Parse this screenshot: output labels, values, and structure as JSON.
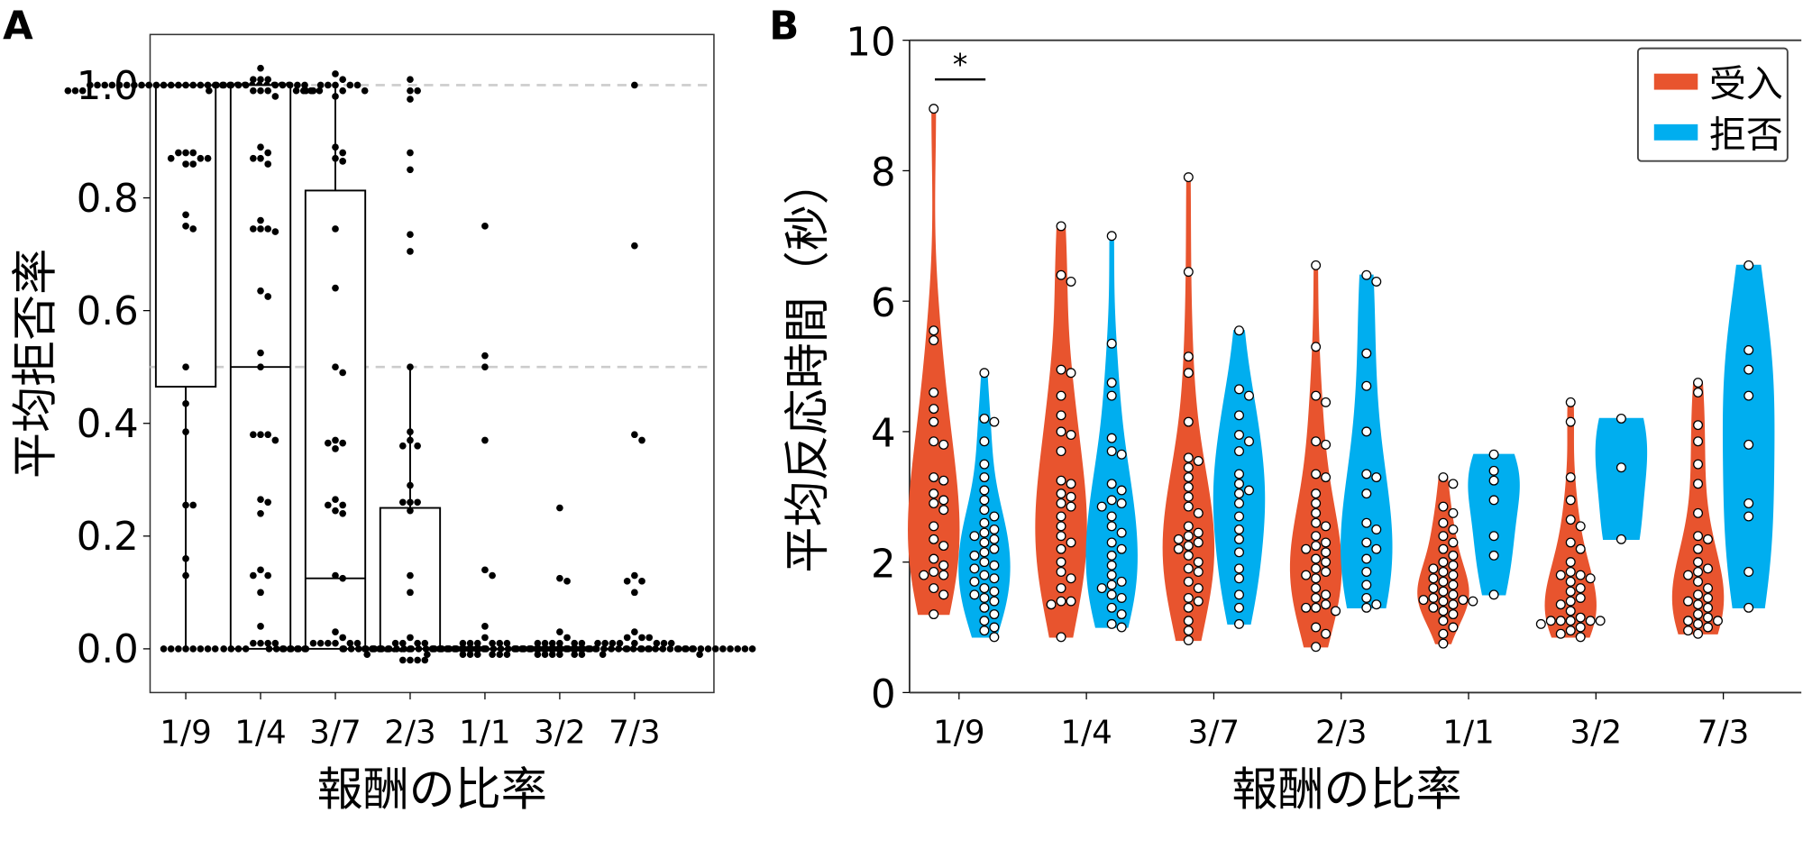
{
  "colors": {
    "accept": "#E8542E",
    "reject": "#00AEEF",
    "point": "#000000",
    "gridline": "#cccccc"
  },
  "chart_data": [
    {
      "panel_label": "A",
      "type": "box+swarm",
      "xlabel": "報酬の比率",
      "ylabel": "平均拒否率",
      "ylim": [
        -0.078,
        1.09
      ],
      "yticks": [
        "0.0",
        "0.2",
        "0.4",
        "0.6",
        "0.8",
        "1.0"
      ],
      "reference_lines": [
        0.5,
        1.0
      ],
      "categories": [
        "1/9",
        "1/4",
        "3/7",
        "2/3",
        "1/1",
        "3/2",
        "7/3"
      ],
      "boxes": [
        {
          "q1": 0.465,
          "median": 1.0,
          "q3": 1.0,
          "whisker_low": 0.0,
          "whisker_high": 1.0
        },
        {
          "q1": 0.0,
          "median": 0.5,
          "q3": 1.0,
          "whisker_low": 0.0,
          "whisker_high": 1.0
        },
        {
          "q1": 0.0,
          "median": 0.125,
          "q3": 0.813,
          "whisker_low": 0.0,
          "whisker_high": 1.0
        },
        {
          "q1": 0.0,
          "median": 0.0,
          "q3": 0.25,
          "whisker_low": 0.0,
          "whisker_high": 0.5
        },
        {
          "q1": 0.0,
          "median": 0.0,
          "q3": 0.0,
          "whisker_low": 0.0,
          "whisker_high": 0.0
        },
        {
          "q1": 0.0,
          "median": 0.0,
          "q3": 0.0,
          "whisker_low": 0.0,
          "whisker_high": 0.0
        },
        {
          "q1": 0.0,
          "median": 0.0,
          "q3": 0.0,
          "whisker_low": 0.0,
          "whisker_high": 0.0
        }
      ],
      "points": [
        [
          1,
          1,
          1,
          1,
          1,
          1,
          1,
          1,
          1,
          1,
          1,
          1,
          1,
          1,
          1,
          1,
          1,
          1,
          1,
          1,
          1,
          1,
          1,
          1,
          1,
          1,
          1,
          1,
          0.99,
          0.99,
          0.99,
          0.99,
          0.99,
          0.99,
          0.88,
          0.88,
          0.88,
          0.87,
          0.87,
          0.87,
          0.86,
          0.86,
          0.77,
          0.75,
          0.745,
          0.5,
          0.435,
          0.385,
          0.255,
          0.255,
          0.16,
          0.13,
          0,
          0,
          0,
          0,
          0,
          0,
          0,
          0
        ],
        [
          1.03,
          1.01,
          1.01,
          1.01,
          1,
          1,
          1,
          1,
          1,
          1,
          1,
          1,
          1,
          1,
          0.99,
          0.99,
          0.99,
          0.99,
          0.99,
          0.99,
          0.98,
          0.89,
          0.88,
          0.87,
          0.87,
          0.86,
          0.76,
          0.745,
          0.745,
          0.745,
          0.74,
          0.635,
          0.625,
          0.525,
          0.5,
          0.38,
          0.38,
          0.38,
          0.37,
          0.265,
          0.26,
          0.24,
          0.14,
          0.13,
          0.13,
          0.1,
          0.04,
          0.01,
          0.01,
          0.01,
          0.01,
          0,
          0,
          0,
          0,
          0,
          0,
          0,
          0
        ],
        [
          1.02,
          1.01,
          1,
          1,
          1,
          1,
          1,
          0.99,
          0.99,
          0.99,
          0.99,
          0.98,
          0.89,
          0.88,
          0.87,
          0.865,
          0.745,
          0.64,
          0.5,
          0.49,
          0.37,
          0.365,
          0.365,
          0.355,
          0.265,
          0.255,
          0.255,
          0.245,
          0.24,
          0.13,
          0.125,
          0.03,
          0.02,
          0.01,
          0.01,
          0.01,
          0.01,
          0.01,
          0.01,
          0,
          0,
          0,
          0,
          0,
          0,
          0,
          0,
          0,
          0,
          0,
          0,
          0,
          0
        ],
        [
          1.01,
          0.99,
          0.99,
          0.975,
          0.88,
          0.85,
          0.735,
          0.705,
          0.5,
          0.385,
          0.37,
          0.36,
          0.36,
          0.29,
          0.26,
          0.26,
          0.26,
          0.245,
          0.13,
          0.1,
          0.02,
          0.01,
          0.01,
          0.01,
          0.01,
          0,
          0,
          0,
          0,
          0,
          0,
          0,
          0,
          0,
          0,
          0,
          0,
          0,
          0,
          0,
          0,
          -0.02,
          -0.02,
          -0.02,
          -0.02
        ],
        [
          0.75,
          0.52,
          0.5,
          0.37,
          0.14,
          0.13,
          0.04,
          0.02,
          0.01,
          0.01,
          0.01,
          0.01,
          0.01,
          0.01,
          0,
          0,
          0,
          0,
          0,
          0,
          0,
          0,
          0,
          0,
          0,
          0,
          0,
          0,
          0,
          0,
          0,
          0,
          0,
          0,
          0,
          0,
          0,
          0,
          0,
          -0.01,
          -0.01,
          -0.01,
          -0.01,
          -0.01,
          -0.01,
          -0.01,
          -0.01
        ],
        [
          0.25,
          0.125,
          0.12,
          0.03,
          0.02,
          0.01,
          0.01,
          0.01,
          0.01,
          0.01,
          0.01,
          0,
          0,
          0,
          0,
          0,
          0,
          0,
          0,
          0,
          0,
          0,
          0,
          0,
          0,
          0,
          0,
          0,
          0,
          0,
          0,
          0,
          0,
          0,
          0,
          0,
          0,
          0,
          0,
          0,
          0,
          -0.01,
          -0.01,
          -0.01,
          -0.01,
          -0.01,
          -0.01,
          -0.01,
          -0.01
        ],
        [
          1.0,
          0.715,
          0.38,
          0.37,
          0.13,
          0.12,
          0.12,
          0.1,
          0.03,
          0.02,
          0.02,
          0.02,
          0.01,
          0.01,
          0.01,
          0.01,
          0.01,
          0.01,
          0.01,
          0.01,
          0,
          0,
          0,
          0,
          0,
          0,
          0,
          0,
          0,
          0,
          0,
          0,
          0,
          0,
          0,
          0,
          0,
          0,
          0,
          0,
          0,
          0,
          0,
          0,
          0
        ]
      ]
    },
    {
      "panel_label": "B",
      "type": "violin+swarm",
      "xlabel": "報酬の比率",
      "ylabel": "平均反応時間（秒）",
      "ylim": [
        0,
        10
      ],
      "yticks": [
        "0",
        "2",
        "4",
        "6",
        "8",
        "10"
      ],
      "categories": [
        "1/9",
        "1/4",
        "3/7",
        "2/3",
        "1/1",
        "3/2",
        "7/3"
      ],
      "legend": {
        "position": "top-right",
        "entries": [
          "受入",
          "拒否"
        ]
      },
      "annotation": {
        "text": "*",
        "category": "1/9",
        "y": 9.4
      },
      "series": [
        {
          "name": "受入",
          "points": [
            [
              8.95,
              5.55,
              5.4,
              4.6,
              4.35,
              4.15,
              3.85,
              3.8,
              3.3,
              3.25,
              3.05,
              2.95,
              2.9,
              2.8,
              2.55,
              2.35,
              2.25,
              2.05,
              1.95,
              1.85,
              1.8,
              1.8,
              1.6,
              1.5,
              1.2
            ],
            [
              7.15,
              6.4,
              6.3,
              4.95,
              4.9,
              4.55,
              4.25,
              4.0,
              3.95,
              3.7,
              3.25,
              3.2,
              3.05,
              3.0,
              2.9,
              2.85,
              2.7,
              2.55,
              2.4,
              2.3,
              2.2,
              2.0,
              1.85,
              1.75,
              1.6,
              1.4,
              1.4,
              1.35,
              0.85
            ],
            [
              7.9,
              6.45,
              5.15,
              4.9,
              4.15,
              3.6,
              3.55,
              3.45,
              3.3,
              3.15,
              3.0,
              2.85,
              2.75,
              2.55,
              2.45,
              2.4,
              2.35,
              2.3,
              2.25,
              2.2,
              2.1,
              2.0,
              1.9,
              1.85,
              1.7,
              1.6,
              1.45,
              1.4,
              1.3,
              1.1,
              0.95,
              0.8
            ],
            [
              6.55,
              5.3,
              4.55,
              4.45,
              3.85,
              3.8,
              3.35,
              3.3,
              3.05,
              2.9,
              2.75,
              2.6,
              2.55,
              2.4,
              2.3,
              2.25,
              2.2,
              2.15,
              2.05,
              2.0,
              1.9,
              1.85,
              1.8,
              1.75,
              1.6,
              1.5,
              1.45,
              1.35,
              1.3,
              1.3,
              1.25,
              1.0,
              0.9,
              0.7
            ],
            [
              3.3,
              3.2,
              2.85,
              2.75,
              2.6,
              2.5,
              2.4,
              2.3,
              2.2,
              2.1,
              2.0,
              1.95,
              1.9,
              1.85,
              1.8,
              1.75,
              1.7,
              1.65,
              1.6,
              1.55,
              1.5,
              1.45,
              1.42,
              1.42,
              1.4,
              1.4,
              1.35,
              1.3,
              1.25,
              1.2,
              1.1,
              1.0,
              0.9,
              0.75
            ],
            [
              4.45,
              4.15,
              3.3,
              2.95,
              2.65,
              2.55,
              2.3,
              2.2,
              2.0,
              1.85,
              1.8,
              1.8,
              1.75,
              1.7,
              1.6,
              1.55,
              1.45,
              1.4,
              1.35,
              1.25,
              1.15,
              1.1,
              1.1,
              1.1,
              1.1,
              1.1,
              1.05,
              1.0,
              0.95,
              0.9,
              0.85
            ],
            [
              4.75,
              4.6,
              4.1,
              3.85,
              3.5,
              3.2,
              2.75,
              2.4,
              2.35,
              2.2,
              2.0,
              1.9,
              1.85,
              1.8,
              1.7,
              1.6,
              1.5,
              1.45,
              1.4,
              1.35,
              1.3,
              1.2,
              1.15,
              1.1,
              1.1,
              1.05,
              1.0,
              0.95,
              0.9
            ]
          ]
        },
        {
          "name": "拒否",
          "points": [
            [
              4.9,
              4.2,
              4.15,
              3.85,
              3.5,
              3.3,
              3.1,
              2.95,
              2.8,
              2.7,
              2.6,
              2.5,
              2.45,
              2.4,
              2.35,
              2.3,
              2.2,
              2.15,
              2.1,
              2.0,
              1.95,
              1.9,
              1.8,
              1.75,
              1.7,
              1.6,
              1.55,
              1.5,
              1.45,
              1.4,
              1.3,
              1.2,
              1.1,
              1.0,
              0.95,
              0.85
            ],
            [
              7.0,
              5.35,
              4.75,
              4.55,
              3.9,
              3.7,
              3.65,
              3.2,
              3.1,
              2.95,
              2.9,
              2.85,
              2.7,
              2.55,
              2.45,
              2.3,
              2.2,
              2.1,
              1.95,
              1.8,
              1.7,
              1.65,
              1.6,
              1.5,
              1.45,
              1.3,
              1.2,
              1.05,
              1.0
            ],
            [
              5.55,
              4.65,
              4.55,
              4.25,
              3.95,
              3.85,
              3.7,
              3.35,
              3.2,
              3.1,
              3.05,
              2.9,
              2.7,
              2.5,
              2.35,
              2.15,
              1.9,
              1.75,
              1.5,
              1.3,
              1.05
            ],
            [
              6.4,
              6.3,
              5.2,
              4.7,
              4.0,
              3.35,
              3.3,
              3.05,
              2.6,
              2.5,
              2.3,
              2.2,
              2.05,
              1.85,
              1.65,
              1.45,
              1.35,
              1.3
            ],
            [
              3.65,
              3.4,
              3.25,
              2.95,
              2.4,
              2.1,
              1.5
            ],
            [
              4.2,
              3.45,
              2.35
            ],
            [
              6.55,
              5.25,
              4.95,
              4.55,
              3.8,
              2.9,
              2.7,
              1.85,
              1.3
            ]
          ]
        }
      ]
    }
  ]
}
